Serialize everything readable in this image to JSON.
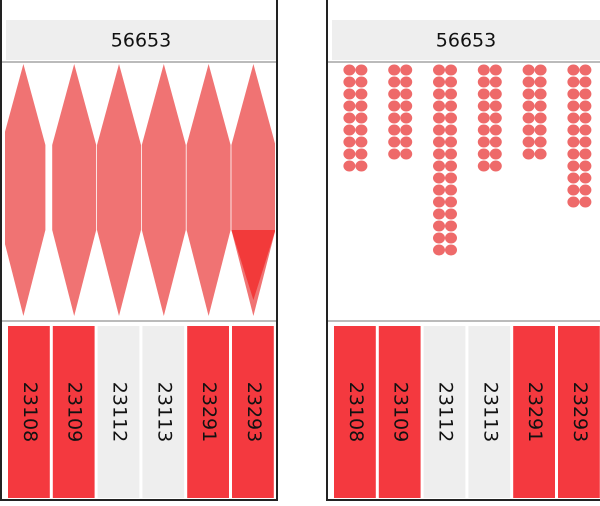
{
  "panels": [
    {
      "header": "56653",
      "columns": [
        {
          "label": "23108",
          "color": "#f4393f"
        },
        {
          "label": "23109",
          "color": "#f4393f"
        },
        {
          "label": "23112",
          "color": "#eeeeee"
        },
        {
          "label": "23113",
          "color": "#eeeeee"
        },
        {
          "label": "23291",
          "color": "#f4393f"
        },
        {
          "label": "23293",
          "color": "#f4393f"
        }
      ]
    },
    {
      "header": "56653",
      "columns": [
        {
          "label": "23108",
          "color": "#f4393f"
        },
        {
          "label": "23109",
          "color": "#f4393f"
        },
        {
          "label": "23112",
          "color": "#eeeeee"
        },
        {
          "label": "23113",
          "color": "#eeeeee"
        },
        {
          "label": "23291",
          "color": "#f4393f"
        },
        {
          "label": "23293",
          "color": "#f4393f"
        }
      ]
    }
  ]
}
